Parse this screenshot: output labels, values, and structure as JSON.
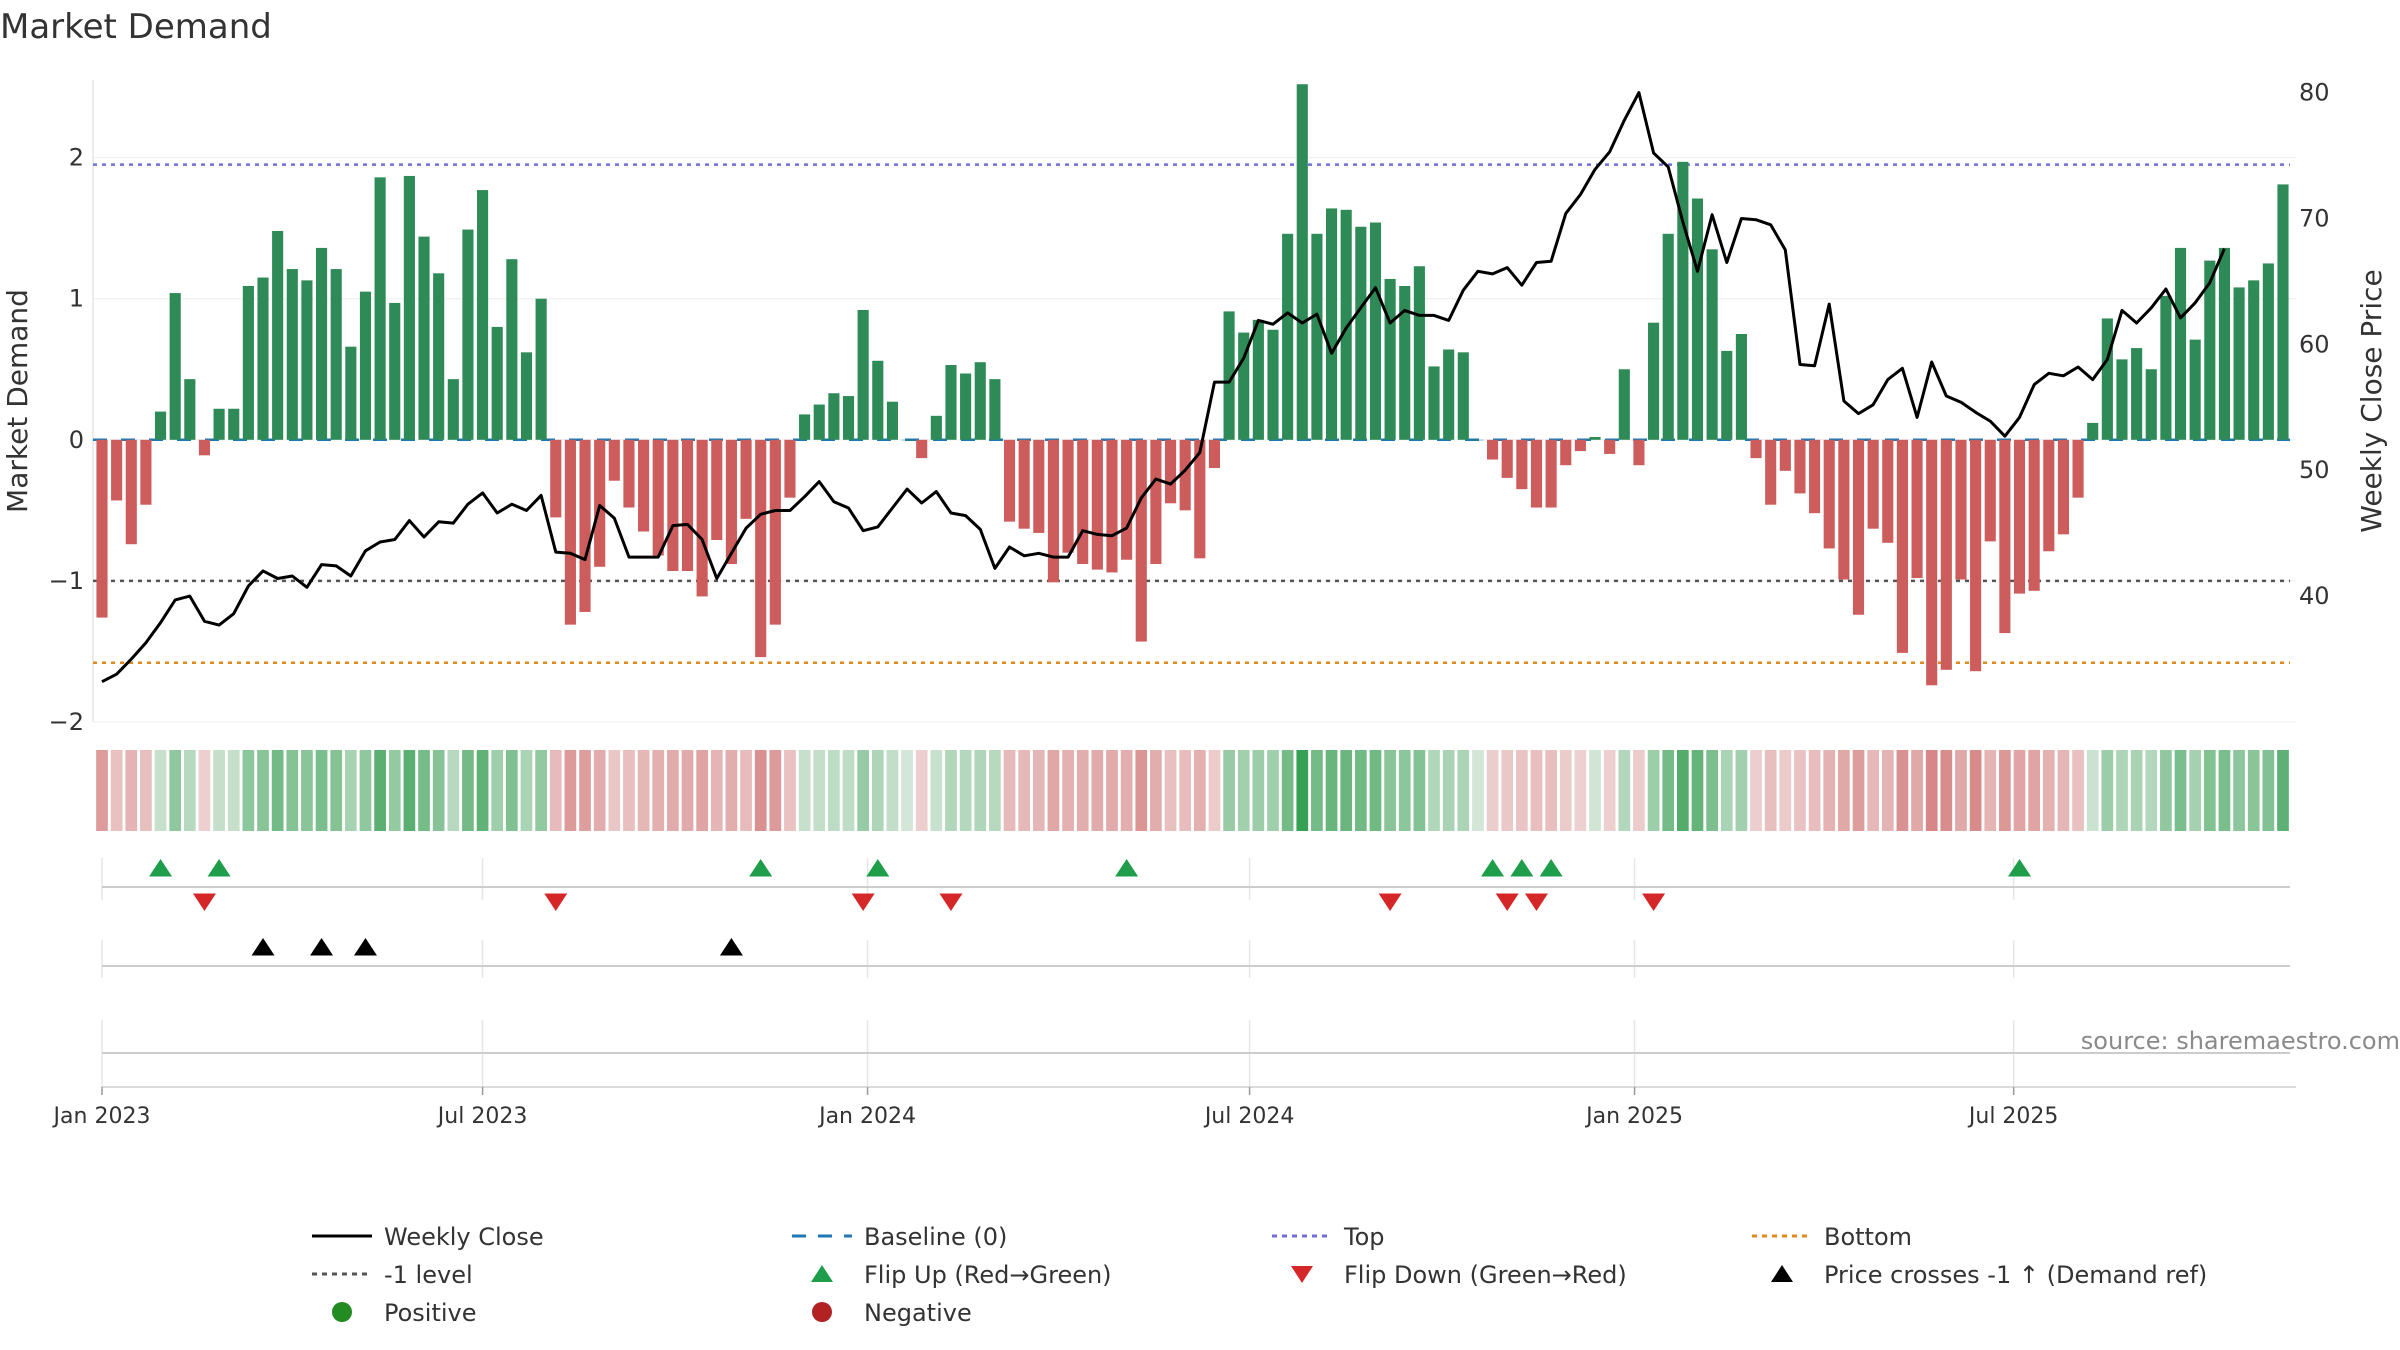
{
  "chart_data": {
    "type": "bar+line",
    "title": "Market Demand",
    "ylabel_left": "Market Demand",
    "ylabel_right": "Weekly Close Price",
    "source": "source: sharemaestro.com",
    "ylim_left": [
      -2,
      2.55
    ],
    "yticks_left": [
      "2",
      "1",
      "0",
      "−1",
      "−2"
    ],
    "ylim_right": [
      30,
      81
    ],
    "yticks_right": [
      "80",
      "70",
      "60",
      "50",
      "40"
    ],
    "x_tick_labels": [
      "Jan 2023",
      "Jul 2023",
      "Jan 2024",
      "Jul 2024",
      "Jan 2025",
      "Jul 2025"
    ],
    "x_tick_weeks": [
      0,
      26,
      52.3,
      78.4,
      104.7,
      130.6
    ],
    "reference_lines": {
      "top": 1.95,
      "minus_one": -1,
      "bottom": -1.58,
      "baseline": 0
    },
    "demand": [
      -1.26,
      -0.43,
      -0.74,
      -0.46,
      0.2,
      1.04,
      0.43,
      -0.11,
      0.22,
      0.22,
      1.09,
      1.15,
      1.48,
      1.21,
      1.13,
      1.36,
      1.21,
      0.66,
      1.05,
      1.86,
      0.97,
      1.87,
      1.44,
      1.18,
      0.43,
      1.49,
      1.77,
      0.8,
      1.28,
      0.62,
      1.0,
      -0.55,
      -1.31,
      -1.22,
      -0.9,
      -0.29,
      -0.48,
      -0.65,
      -0.82,
      -0.93,
      -0.93,
      -1.11,
      -0.71,
      -0.88,
      -0.56,
      -1.54,
      -1.31,
      -0.41,
      0.18,
      0.25,
      0.33,
      0.31,
      0.92,
      0.56,
      0.27,
      0.0,
      -0.13,
      0.17,
      0.53,
      0.47,
      0.55,
      0.43,
      -0.58,
      -0.63,
      -0.66,
      -1.01,
      -0.8,
      -0.88,
      -0.92,
      -0.94,
      -0.85,
      -1.43,
      -0.88,
      -0.45,
      -0.5,
      -0.84,
      -0.2,
      0.91,
      0.76,
      0.85,
      0.78,
      1.46,
      2.52,
      1.46,
      1.64,
      1.63,
      1.51,
      1.54,
      1.14,
      1.09,
      1.23,
      0.52,
      0.64,
      0.62,
      0.0,
      -0.14,
      -0.27,
      -0.35,
      -0.48,
      -0.48,
      -0.18,
      -0.08,
      0.02,
      -0.1,
      0.5,
      -0.18,
      0.83,
      1.46,
      1.97,
      1.71,
      1.35,
      0.63,
      0.75,
      -0.13,
      -0.46,
      -0.22,
      -0.38,
      -0.52,
      -0.77,
      -0.99,
      -1.24,
      -0.63,
      -0.73,
      -1.51,
      -0.98,
      -1.74,
      -1.63,
      -0.99,
      -1.64,
      -0.72,
      -1.37,
      -1.09,
      -1.07,
      -0.79,
      -0.67,
      -0.41,
      0.12,
      0.86,
      0.57,
      0.65,
      0.5,
      1.02,
      1.36,
      0.71,
      1.27,
      1.36,
      1.08,
      1.13,
      1.25,
      1.81
    ],
    "weekly_close": [
      33.2,
      33.8,
      35.0,
      36.3,
      37.9,
      39.7,
      40.0,
      38.0,
      37.7,
      38.6,
      40.8,
      42.0,
      41.4,
      41.6,
      40.7,
      42.5,
      42.4,
      41.6,
      43.6,
      44.3,
      44.5,
      46.0,
      44.7,
      45.9,
      45.8,
      47.3,
      48.2,
      46.6,
      47.3,
      46.8,
      48.0,
      43.5,
      43.4,
      42.9,
      47.2,
      46.2,
      43.1,
      43.1,
      43.1,
      45.6,
      45.7,
      44.5,
      41.4,
      43.4,
      45.4,
      46.5,
      46.8,
      46.8,
      47.9,
      49.1,
      47.5,
      47.0,
      45.2,
      45.5,
      47.0,
      48.5,
      47.4,
      48.3,
      46.6,
      46.4,
      45.3,
      42.2,
      43.9,
      43.2,
      43.4,
      43.1,
      43.1,
      45.2,
      44.9,
      44.8,
      45.4,
      47.8,
      49.3,
      48.9,
      50.0,
      51.4,
      57.0,
      57.0,
      58.9,
      61.9,
      61.6,
      62.5,
      61.7,
      62.4,
      59.3,
      61.3,
      62.9,
      64.5,
      61.7,
      62.7,
      62.3,
      62.3,
      61.9,
      64.3,
      65.8,
      65.6,
      66.1,
      64.7,
      66.5,
      66.6,
      70.4,
      71.9,
      73.9,
      75.3,
      77.8,
      80.0,
      75.2,
      74.1,
      69.7,
      65.8,
      70.3,
      66.5,
      70.0,
      69.9,
      69.5,
      67.5,
      58.4,
      58.3,
      63.2,
      55.5,
      54.5,
      55.2,
      57.2,
      58.1,
      54.2,
      58.6,
      55.9,
      55.4,
      54.6,
      53.9,
      52.7,
      54.2,
      56.8,
      57.7,
      57.5,
      58.2,
      57.2,
      58.8,
      62.7,
      61.7,
      62.9,
      64.4,
      62.1,
      63.3,
      64.9,
      67.6
    ],
    "heat_strip": "green-red intensity strip mirroring demand",
    "flip_up_weeks": [
      4,
      8,
      45,
      53,
      70,
      95,
      97,
      99,
      131
    ],
    "flip_down_weeks": [
      7,
      31,
      52,
      58,
      88,
      96,
      98,
      106
    ],
    "price_cross_weeks": [
      11,
      15,
      18,
      43
    ],
    "legend": [
      {
        "label": "Weekly Close",
        "marker": "solid-line",
        "color": "#000000"
      },
      {
        "label": "Baseline (0)",
        "marker": "dashed-line",
        "color": "#1f77b4"
      },
      {
        "label": "Top",
        "marker": "dotted-line",
        "color": "#6f6fdc"
      },
      {
        "label": "Bottom",
        "marker": "dotted-line",
        "color": "#e08a1e"
      },
      {
        "label": "-1 level",
        "marker": "dotted-line",
        "color": "#555555"
      },
      {
        "label": "Flip Up (Red→Green)",
        "marker": "triangle-up",
        "color": "#1e9e4a"
      },
      {
        "label": "Flip Down (Green→Red)",
        "marker": "triangle-down",
        "color": "#d62728"
      },
      {
        "label": "Price crosses -1 ↑ (Demand ref)",
        "marker": "triangle-up",
        "color": "#000000"
      },
      {
        "label": "Positive",
        "marker": "circle",
        "color": "#228b22"
      },
      {
        "label": "Negative",
        "marker": "circle",
        "color": "#b22222"
      }
    ],
    "colors": {
      "positive_bar": "#2e8b57",
      "negative_bar": "#cd5c5c",
      "line": "#000000",
      "top": "#6f6fdc",
      "bottom": "#e08a1e",
      "minus_one": "#555555",
      "baseline": "#1f77b4"
    }
  }
}
